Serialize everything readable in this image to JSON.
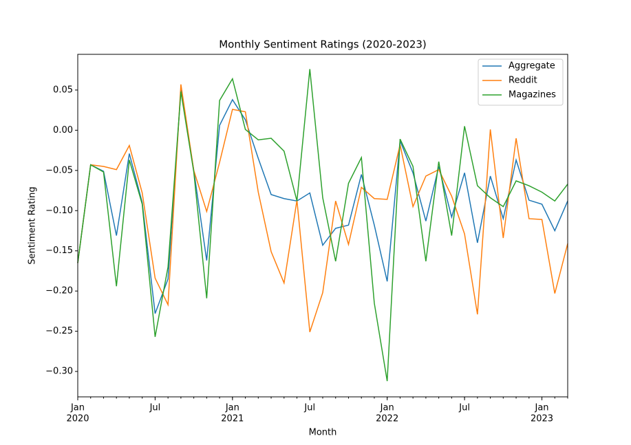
{
  "chart_data": {
    "type": "line",
    "title": "Monthly Sentiment Ratings (2020-2023)",
    "xlabel": "Month",
    "ylabel": "Sentiment Rating",
    "x": [
      "2020-01",
      "2020-02",
      "2020-03",
      "2020-04",
      "2020-05",
      "2020-06",
      "2020-07",
      "2020-08",
      "2020-09",
      "2020-10",
      "2020-11",
      "2020-12",
      "2021-01",
      "2021-02",
      "2021-03",
      "2021-04",
      "2021-05",
      "2021-06",
      "2021-07",
      "2021-08",
      "2021-09",
      "2021-10",
      "2021-11",
      "2021-12",
      "2022-01",
      "2022-02",
      "2022-03",
      "2022-04",
      "2022-05",
      "2022-06",
      "2022-07",
      "2022-08",
      "2022-09",
      "2022-10",
      "2022-11",
      "2022-12",
      "2023-01",
      "2023-02",
      "2023-03"
    ],
    "series": [
      {
        "name": "Aggregate",
        "color": "#1f77b4",
        "values": [
          -0.165,
          -0.043,
          -0.051,
          -0.131,
          -0.029,
          -0.09,
          -0.228,
          -0.185,
          0.05,
          -0.05,
          -0.162,
          0.006,
          0.038,
          0.013,
          -0.035,
          -0.08,
          -0.085,
          -0.088,
          -0.078,
          -0.143,
          -0.122,
          -0.118,
          -0.055,
          -0.118,
          -0.188,
          -0.013,
          -0.053,
          -0.113,
          -0.045,
          -0.108,
          -0.053,
          -0.14,
          -0.057,
          -0.11,
          -0.037,
          -0.087,
          -0.092,
          -0.125,
          -0.088
        ]
      },
      {
        "name": "Reddit",
        "color": "#ff7f0e",
        "values": [
          -0.165,
          -0.043,
          -0.045,
          -0.049,
          -0.019,
          -0.078,
          -0.184,
          -0.217,
          0.057,
          -0.05,
          -0.101,
          -0.04,
          0.026,
          0.023,
          -0.077,
          -0.151,
          -0.19,
          -0.087,
          -0.251,
          -0.202,
          -0.088,
          -0.142,
          -0.071,
          -0.085,
          -0.086,
          -0.018,
          -0.095,
          -0.057,
          -0.049,
          -0.082,
          -0.129,
          -0.229,
          0.001,
          -0.134,
          -0.01,
          -0.11,
          -0.111,
          -0.203,
          -0.141
        ]
      },
      {
        "name": "Magazines",
        "color": "#2ca02c",
        "values": [
          -0.165,
          -0.043,
          -0.052,
          -0.194,
          -0.037,
          -0.092,
          -0.257,
          -0.17,
          0.048,
          -0.052,
          -0.209,
          0.037,
          0.064,
          0.001,
          -0.012,
          -0.01,
          -0.026,
          -0.088,
          0.076,
          -0.084,
          -0.163,
          -0.066,
          -0.034,
          -0.215,
          -0.312,
          -0.011,
          -0.045,
          -0.163,
          -0.039,
          -0.131,
          0.005,
          -0.069,
          -0.084,
          -0.095,
          -0.063,
          -0.069,
          -0.077,
          -0.088,
          -0.067
        ]
      }
    ],
    "xlim": [
      "2020-01",
      "2023-03"
    ],
    "xticks": [
      {
        "value": "2020-01",
        "label": [
          "Jan",
          "2020"
        ]
      },
      {
        "value": "2020-07",
        "label": [
          "Jul"
        ]
      },
      {
        "value": "2021-01",
        "label": [
          "Jan",
          "2021"
        ]
      },
      {
        "value": "2021-07",
        "label": [
          "Jul"
        ]
      },
      {
        "value": "2022-01",
        "label": [
          "Jan",
          "2022"
        ]
      },
      {
        "value": "2022-07",
        "label": [
          "Jul"
        ]
      },
      {
        "value": "2023-01",
        "label": [
          "Jan",
          "2023"
        ]
      }
    ],
    "ylim": [
      -0.3316,
      0.0944
    ],
    "yticks": [
      {
        "value": 0.05,
        "label": "0.05"
      },
      {
        "value": 0,
        "label": "0.00"
      },
      {
        "value": -0.05,
        "label": "−0.05"
      },
      {
        "value": -0.1,
        "label": "−0.10"
      },
      {
        "value": -0.15,
        "label": "−0.15"
      },
      {
        "value": -0.2,
        "label": "−0.20"
      },
      {
        "value": -0.25,
        "label": "−0.25"
      },
      {
        "value": -0.3,
        "label": "−0.30"
      }
    ],
    "grid": false,
    "legend": "upper right"
  }
}
